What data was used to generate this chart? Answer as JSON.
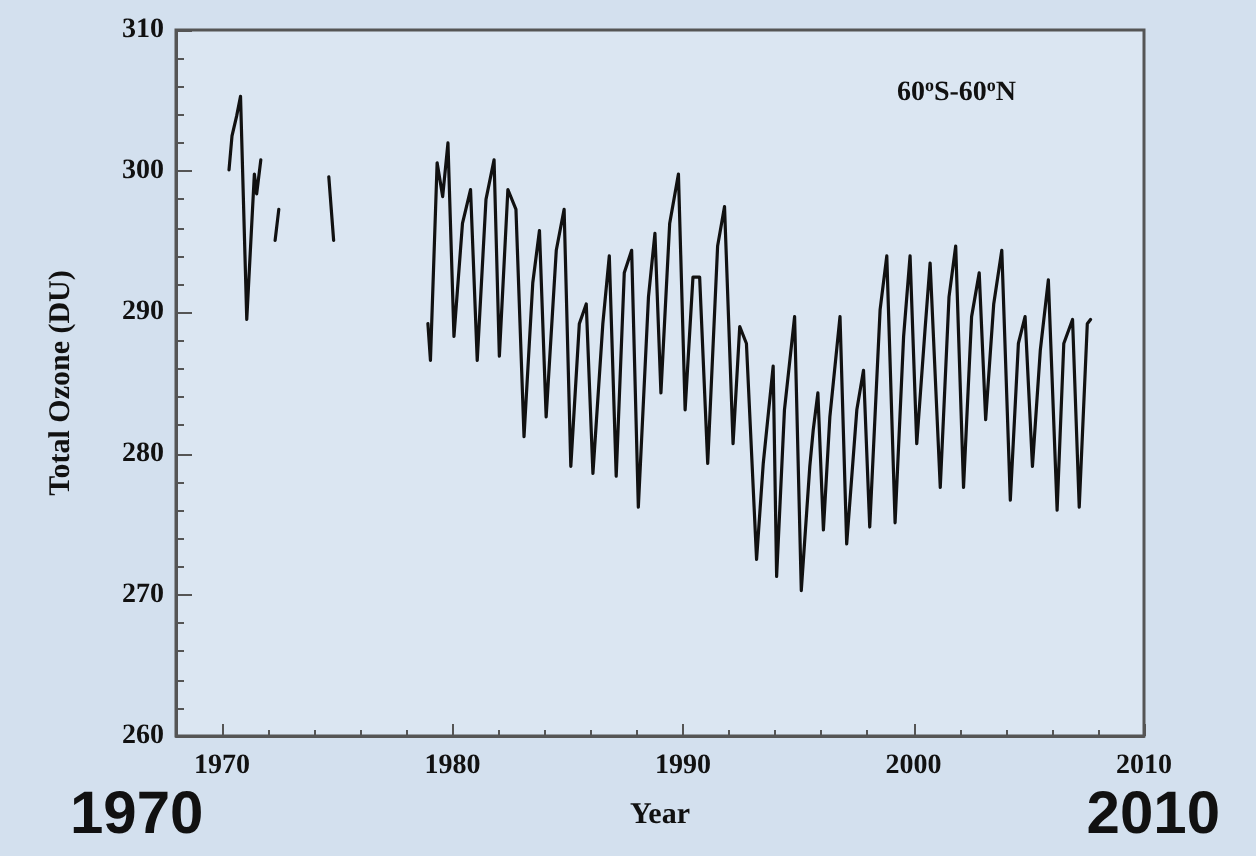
{
  "chart_data": {
    "type": "line",
    "xlabel": "Year",
    "ylabel": "Total Ozone (DU)",
    "annotations": [
      "60$^{o}$S-60$^{o}$N",
      "1970",
      "2010"
    ],
    "xlim": [
      1968,
      2010
    ],
    "xticks": [
      1970,
      1980,
      1990,
      2000,
      2010
    ],
    "ylim": [
      260,
      310
    ],
    "yticks": [
      260,
      270,
      280,
      290,
      300,
      310
    ],
    "grid": false,
    "marker": "none",
    "line_style": "solid",
    "series": [
      {
        "color": "#111111",
        "x": [
          1970.3,
          1970.43,
          1970.63,
          1970.8,
          1971.07,
          1971.4,
          1971.5,
          1971.68,
          1972.0,
          1972.3,
          1972.46,
          1973.5,
          1974.63,
          1974.84,
          1976.5,
          1978.93,
          1979.04,
          1979.33,
          1979.57,
          1979.8,
          1980.06,
          1980.43,
          1980.78,
          1981.07,
          1981.45,
          1981.8,
          1982.03,
          1982.4,
          1982.75,
          1983.1,
          1983.48,
          1983.77,
          1984.06,
          1984.5,
          1984.84,
          1985.13,
          1985.5,
          1985.8,
          1986.09,
          1986.52,
          1986.8,
          1987.1,
          1987.45,
          1987.77,
          1988.06,
          1988.5,
          1988.78,
          1989.04,
          1989.42,
          1989.8,
          1990.09,
          1990.43,
          1990.72,
          1991.07,
          1991.5,
          1991.8,
          1992.17,
          1992.46,
          1992.75,
          1993.19,
          1993.48,
          1993.91,
          1994.06,
          1994.4,
          1994.84,
          1995.13,
          1995.5,
          1995.65,
          1995.85,
          1996.09,
          1996.37,
          1996.81,
          1997.1,
          1997.54,
          1997.83,
          1998.1,
          1998.55,
          1998.84,
          1999.2,
          1999.57,
          1999.85,
          2000.14,
          2000.5,
          2000.72,
          2001.16,
          2001.54,
          2001.83,
          2002.17,
          2002.52,
          2002.85,
          2003.13,
          2003.48,
          2003.83,
          2004.2,
          2004.55,
          2004.84,
          2005.16,
          2005.5,
          2005.85,
          2006.23,
          2006.52,
          2006.9,
          2007.19,
          2007.54,
          2007.68
        ],
        "values": [
          300.1,
          302.5,
          303.9,
          305.3,
          289.5,
          299.8,
          298.4,
          300.8,
          null,
          295.1,
          297.3,
          null,
          299.6,
          295.1,
          null,
          289.2,
          286.6,
          300.6,
          298.2,
          302,
          288.3,
          296.3,
          298.7,
          286.6,
          298,
          300.8,
          286.9,
          298.7,
          297.3,
          281.2,
          292.1,
          295.8,
          282.6,
          294.4,
          297.3,
          279.1,
          289.2,
          290.6,
          278.6,
          289.2,
          294,
          278.4,
          292.8,
          294.4,
          276.2,
          291.1,
          295.6,
          284.3,
          296.3,
          299.8,
          283.1,
          292.5,
          292.5,
          279.3,
          294.7,
          297.5,
          280.7,
          289,
          287.8,
          272.5,
          279.3,
          286.2,
          271.3,
          283.1,
          289.7,
          270.3,
          279.1,
          281.7,
          284.3,
          274.6,
          282.6,
          289.7,
          273.6,
          283.1,
          285.9,
          274.8,
          290.2,
          294,
          275.1,
          288.3,
          294,
          280.7,
          288.8,
          293.5,
          277.6,
          291.1,
          294.7,
          277.6,
          289.7,
          292.8,
          282.4,
          290.6,
          294.4,
          276.7,
          287.8,
          289.7,
          279.1,
          287.3,
          292.3,
          276,
          287.8,
          289.5,
          276.2,
          289.2,
          289.5
        ]
      }
    ]
  }
}
